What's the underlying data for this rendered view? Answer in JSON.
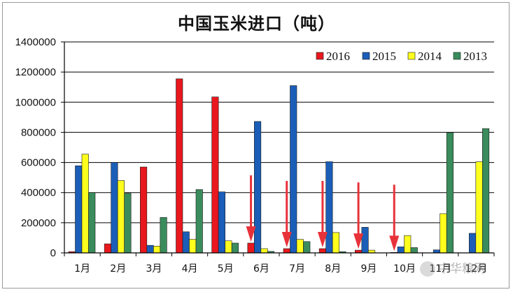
{
  "chart_data": {
    "type": "bar",
    "title": "中国玉米进口（吨）",
    "categories": [
      "1月",
      "2月",
      "3月",
      "4月",
      "5月",
      "6月",
      "7月",
      "8月",
      "9月",
      "10月",
      "11月",
      "12月"
    ],
    "ylim": [
      0,
      1400000
    ],
    "yticks": [
      0,
      200000,
      400000,
      600000,
      800000,
      1000000,
      1200000,
      1400000
    ],
    "ytick_labels": [
      "0",
      "200000",
      "400000",
      "600000",
      "800000",
      "1000000",
      "1200000",
      "1400000"
    ],
    "grid": true,
    "legend_position": "top-right",
    "series": [
      {
        "name": "2016",
        "color": "#e8181e",
        "values": [
          8000,
          60000,
          570000,
          1155000,
          1035000,
          65000,
          28000,
          28000,
          18000,
          3000,
          null,
          null
        ]
      },
      {
        "name": "2015",
        "color": "#1b5eb8",
        "values": [
          578000,
          600000,
          50000,
          140000,
          405000,
          872000,
          1110000,
          605000,
          170000,
          40000,
          20000,
          130000
        ]
      },
      {
        "name": "2014",
        "color": "#ffff1e",
        "values": [
          655000,
          480000,
          45000,
          90000,
          80000,
          28000,
          90000,
          135000,
          18000,
          115000,
          260000,
          605000
        ]
      },
      {
        "name": "2013",
        "color": "#3a8c5c",
        "values": [
          400000,
          395000,
          235000,
          420000,
          65000,
          10000,
          75000,
          8000,
          0,
          35000,
          798000,
          825000
        ]
      }
    ],
    "annotations": {
      "arrow_color": "#e8323a",
      "arrow_icon": "down-arrow-icon",
      "arrow_categories": [
        "6月",
        "7月",
        "8月",
        "9月",
        "10月"
      ]
    }
  },
  "watermark": {
    "text": "中华粮网",
    "icon": "logo-icon"
  }
}
